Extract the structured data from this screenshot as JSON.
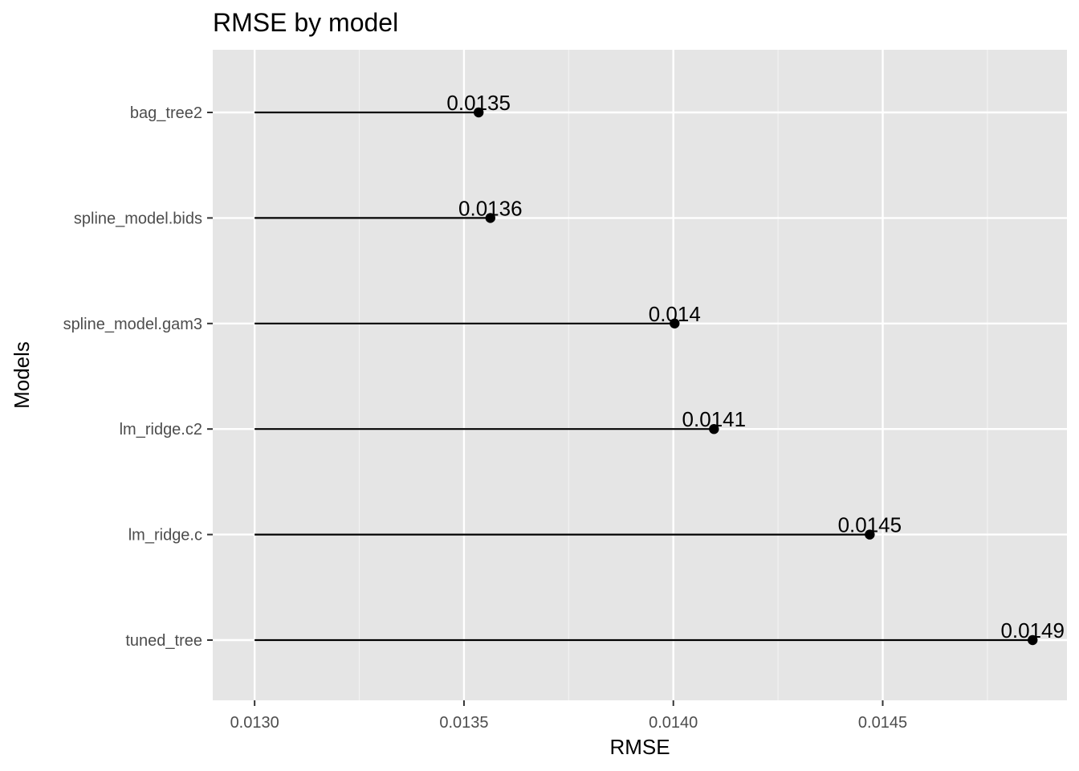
{
  "chart_data": {
    "type": "lollipop",
    "title": "RMSE by model",
    "xlabel": "RMSE",
    "ylabel": "Models",
    "xlim": [
      0.0129,
      0.01494
    ],
    "baseline": 0.013,
    "x_ticks": [
      0.013,
      0.0135,
      0.014,
      0.0145
    ],
    "x_tick_labels": [
      "0.0130",
      "0.0135",
      "0.0140",
      "0.0145"
    ],
    "categories": [
      "bag_tree2",
      "spline_model.bids",
      "spline_model.gam3",
      "lm_ridge.c2",
      "lm_ridge.c",
      "tuned_tree"
    ],
    "values": [
      0.013535,
      0.013563,
      0.014003,
      0.014097,
      0.014469,
      0.014858
    ],
    "data_labels": [
      "0.0135",
      "0.0136",
      "0.014",
      "0.0141",
      "0.0145",
      "0.0149"
    ],
    "grid": true,
    "legend": "none",
    "colors": {
      "panel_background": "#e5e5e5",
      "grid_major": "#ffffff",
      "grid_minor": "#f2f2f2",
      "mark": "#000000",
      "tick_text": "#4d4d4d"
    }
  }
}
